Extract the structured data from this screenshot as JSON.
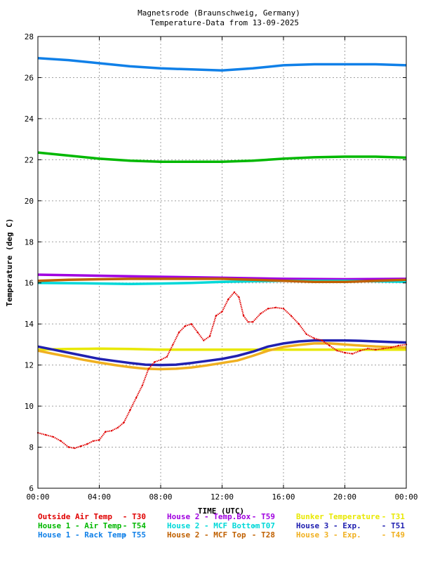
{
  "chart_data": {
    "type": "line",
    "title_line1": "Magnetsrode (Braunschweig, Germany)",
    "title_line2": "Temperature-Data from 13-09-2025",
    "xlabel": "TIME (UTC)",
    "ylabel": "Temperature (deg C)",
    "xlim": [
      0,
      24
    ],
    "ylim": [
      6,
      28
    ],
    "x_ticks": [
      {
        "value": 0,
        "label": "00:00"
      },
      {
        "value": 4,
        "label": "04:00"
      },
      {
        "value": 8,
        "label": "08:00"
      },
      {
        "value": 12,
        "label": "12:00"
      },
      {
        "value": 16,
        "label": "16:00"
      },
      {
        "value": 20,
        "label": "20:00"
      },
      {
        "value": 24,
        "label": "00:00"
      }
    ],
    "y_ticks": [
      {
        "value": 6,
        "label": "6"
      },
      {
        "value": 8,
        "label": "8"
      },
      {
        "value": 10,
        "label": "10"
      },
      {
        "value": 12,
        "label": "12"
      },
      {
        "value": 14,
        "label": "14"
      },
      {
        "value": 16,
        "label": "16"
      },
      {
        "value": 18,
        "label": "18"
      },
      {
        "value": 20,
        "label": "20"
      },
      {
        "value": 22,
        "label": "22"
      },
      {
        "value": 24,
        "label": "24"
      },
      {
        "value": 26,
        "label": "26"
      },
      {
        "value": 28,
        "label": "28"
      }
    ],
    "grid": true,
    "legend_placement": "bottom",
    "series": [
      {
        "name": "Outside Air Temp",
        "code": "T30",
        "color": "#e00000",
        "style": "dots",
        "x": [
          0,
          0.5,
          1,
          1.5,
          2,
          2.4,
          2.8,
          3.2,
          3.6,
          4,
          4.4,
          4.8,
          5.2,
          5.6,
          6,
          6.4,
          6.8,
          7.2,
          7.6,
          8,
          8.4,
          8.8,
          9.2,
          9.6,
          10,
          10.4,
          10.8,
          11.2,
          11.6,
          12,
          12.4,
          12.8,
          13.1,
          13.4,
          13.7,
          14,
          14.5,
          15,
          15.5,
          16,
          16.5,
          17,
          17.5,
          18,
          18.5,
          19,
          19.5,
          20,
          20.5,
          21,
          21.5,
          22,
          22.5,
          23,
          23.5,
          24
        ],
        "y": [
          8.7,
          8.6,
          8.5,
          8.3,
          8.0,
          7.95,
          8.05,
          8.15,
          8.3,
          8.35,
          8.75,
          8.8,
          8.95,
          9.2,
          9.8,
          10.4,
          11.0,
          11.8,
          12.15,
          12.25,
          12.4,
          13.0,
          13.6,
          13.9,
          14.0,
          13.6,
          13.2,
          13.4,
          14.4,
          14.6,
          15.2,
          15.55,
          15.3,
          14.4,
          14.1,
          14.1,
          14.5,
          14.75,
          14.8,
          14.75,
          14.4,
          14.0,
          13.5,
          13.3,
          13.2,
          12.95,
          12.7,
          12.6,
          12.55,
          12.7,
          12.8,
          12.75,
          12.8,
          12.85,
          12.95,
          13.0
        ]
      },
      {
        "name": "House 1 - Air  Temp",
        "code": "T54",
        "color": "#00b800",
        "style": "line",
        "x": [
          0,
          2,
          4,
          6,
          8,
          10,
          12,
          14,
          16,
          18,
          20,
          22,
          24
        ],
        "y": [
          22.35,
          22.2,
          22.05,
          21.95,
          21.9,
          21.9,
          21.9,
          21.95,
          22.05,
          22.12,
          22.15,
          22.15,
          22.1
        ]
      },
      {
        "name": "House 1 - Rack Temp",
        "code": "T55",
        "color": "#1080e8",
        "style": "line",
        "x": [
          0,
          2,
          4,
          6,
          8,
          10,
          12,
          13,
          14,
          16,
          18,
          20,
          22,
          24
        ],
        "y": [
          26.95,
          26.85,
          26.7,
          26.55,
          26.45,
          26.4,
          26.35,
          26.4,
          26.45,
          26.6,
          26.65,
          26.65,
          26.65,
          26.6
        ]
      },
      {
        "name": "House 2 - Temp.Box",
        "code": "T59",
        "color": "#a000e0",
        "style": "line",
        "x": [
          0,
          4,
          8,
          12,
          16,
          20,
          24
        ],
        "y": [
          16.4,
          16.35,
          16.3,
          16.25,
          16.2,
          16.18,
          16.2
        ]
      },
      {
        "name": "House 2 - MCF Bottom",
        "code": "T07",
        "color": "#00d8d8",
        "style": "line",
        "x": [
          0,
          3,
          6,
          8,
          10,
          12,
          14,
          16,
          18,
          20,
          22,
          24
        ],
        "y": [
          16.0,
          15.98,
          15.95,
          15.97,
          16.0,
          16.05,
          16.08,
          16.1,
          16.1,
          16.1,
          16.08,
          16.05
        ]
      },
      {
        "name": "House 2 - MCF Top",
        "code": "T28",
        "color": "#c06000",
        "style": "line",
        "x": [
          0,
          2,
          4,
          6,
          8,
          10,
          12,
          14,
          16,
          18,
          20,
          22,
          24
        ],
        "y": [
          16.1,
          16.15,
          16.18,
          16.2,
          16.2,
          16.2,
          16.2,
          16.15,
          16.1,
          16.05,
          16.05,
          16.1,
          16.15
        ]
      },
      {
        "name": "Bunker Temperature",
        "code": "T31",
        "color": "#e8e800",
        "style": "line",
        "x": [
          0,
          2,
          4,
          6,
          8,
          10,
          12,
          14,
          16,
          18,
          20,
          22,
          24
        ],
        "y": [
          12.75,
          12.78,
          12.8,
          12.78,
          12.75,
          12.75,
          12.75,
          12.75,
          12.75,
          12.75,
          12.75,
          12.75,
          12.75
        ]
      },
      {
        "name": "House 3 - Exp.",
        "code": "T51",
        "color": "#2020b0",
        "style": "line",
        "x": [
          0,
          1,
          2,
          3,
          4,
          5,
          6,
          7,
          8,
          9,
          10,
          11,
          12,
          13,
          14,
          15,
          16,
          17,
          18,
          19,
          20,
          21,
          22,
          23,
          24
        ],
        "y": [
          12.9,
          12.75,
          12.6,
          12.45,
          12.3,
          12.2,
          12.1,
          12.02,
          12.0,
          12.02,
          12.1,
          12.2,
          12.3,
          12.45,
          12.65,
          12.9,
          13.05,
          13.15,
          13.2,
          13.2,
          13.2,
          13.18,
          13.15,
          13.12,
          13.1
        ]
      },
      {
        "name": "House 3 - Exp.",
        "code": "T49",
        "color": "#f0b020",
        "style": "line",
        "x": [
          0,
          1,
          2,
          3,
          4,
          5,
          6,
          7,
          8,
          9,
          10,
          11,
          12,
          13,
          14,
          15,
          16,
          17,
          18,
          19,
          20,
          21,
          22,
          23,
          24
        ],
        "y": [
          12.7,
          12.55,
          12.4,
          12.25,
          12.12,
          12.0,
          11.9,
          11.82,
          11.8,
          11.82,
          11.88,
          11.98,
          12.1,
          12.22,
          12.45,
          12.7,
          12.88,
          12.98,
          13.05,
          13.05,
          13.0,
          12.95,
          12.9,
          12.87,
          12.85
        ]
      }
    ]
  }
}
